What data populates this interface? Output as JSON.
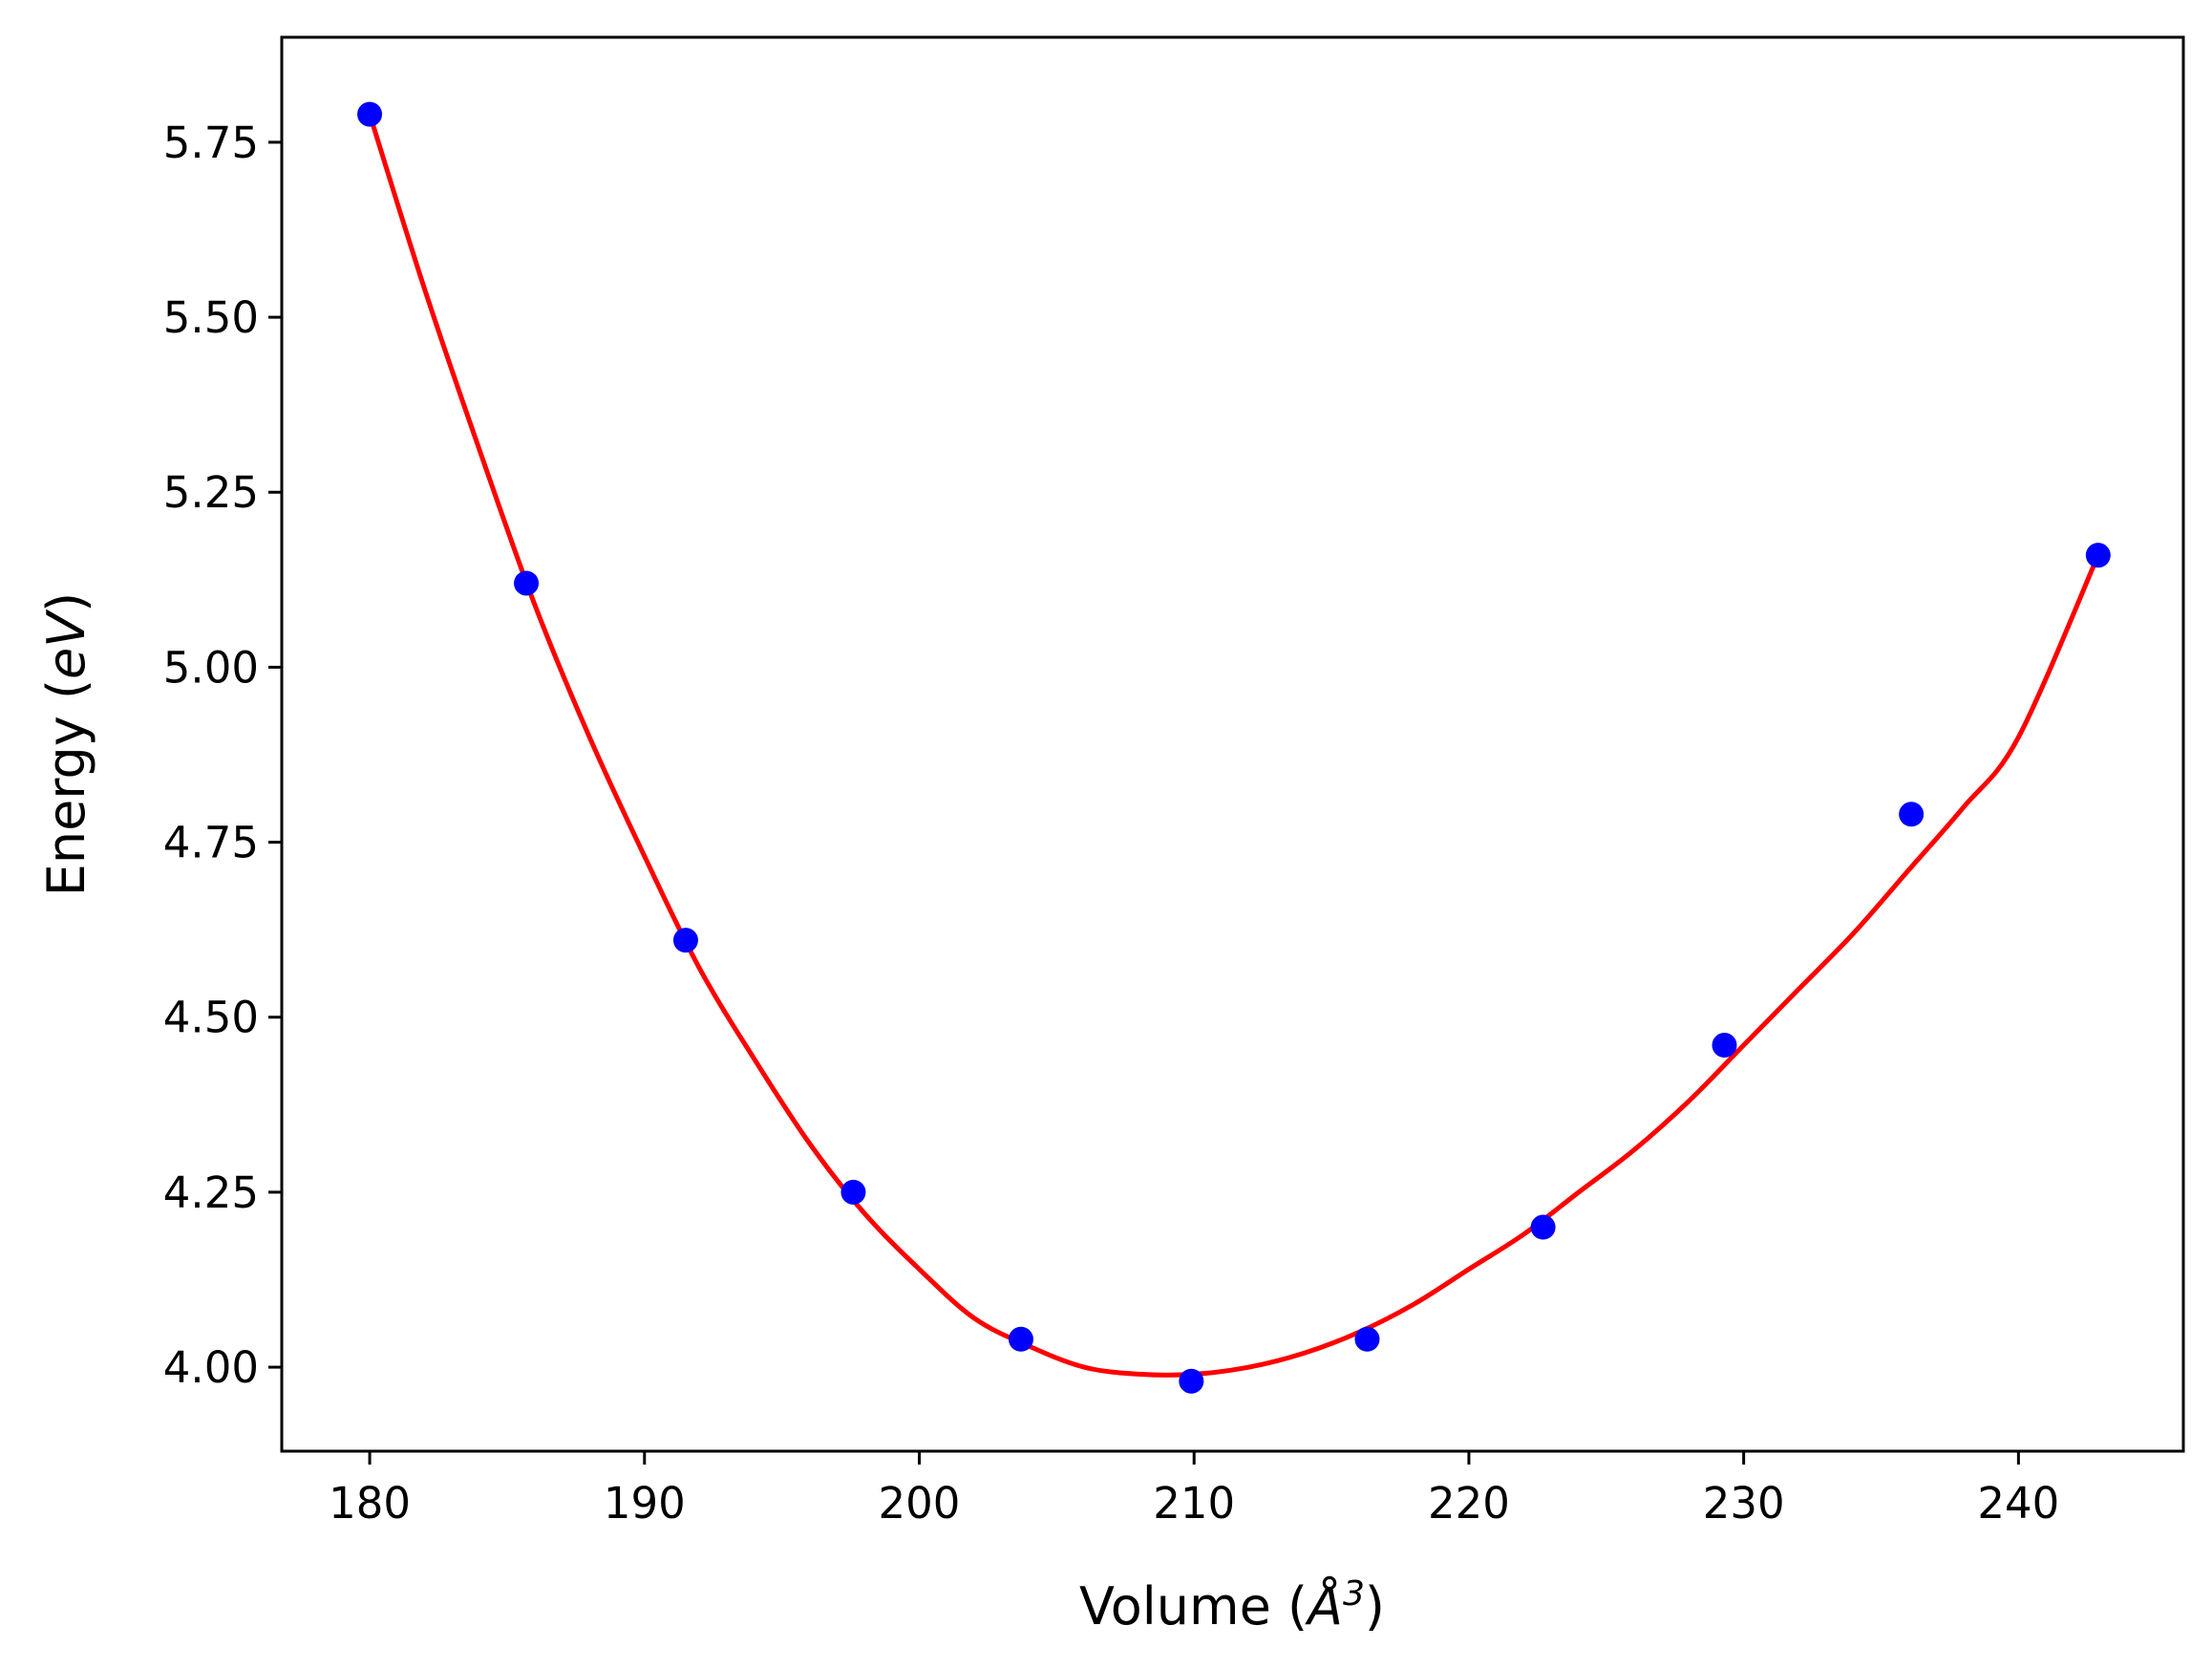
{
  "chart_data": {
    "type": "scatter",
    "title": "",
    "xlabel": "Volume (Å³)",
    "xlabel_parts": {
      "prefix": "Volume (",
      "symbol": "Å",
      "sup": "3",
      "suffix": ")"
    },
    "ylabel": "Energy (eV)",
    "ylabel_parts": {
      "prefix": "Energy (",
      "italic": "eV",
      "suffix": ")"
    },
    "xlim": [
      176.8,
      246.0
    ],
    "ylim": [
      3.88,
      5.9
    ],
    "xticks": [
      180,
      190,
      200,
      210,
      220,
      230,
      240
    ],
    "xtick_labels": [
      "180",
      "190",
      "200",
      "210",
      "220",
      "230",
      "240"
    ],
    "yticks": [
      4.0,
      4.25,
      4.5,
      4.75,
      5.0,
      5.25,
      5.5,
      5.75
    ],
    "ytick_labels": [
      "4.00",
      "4.25",
      "4.50",
      "4.75",
      "5.00",
      "5.25",
      "5.50",
      "5.75"
    ],
    "grid": false,
    "series": [
      {
        "kind": "points",
        "color": "#0000ff",
        "marker": "circle",
        "x": [
          180.0,
          185.7,
          191.5,
          197.6,
          203.7,
          209.9,
          216.3,
          222.7,
          229.3,
          236.1,
          242.9
        ],
        "y": [
          5.79,
          5.12,
          4.61,
          4.25,
          4.04,
          3.98,
          4.04,
          4.2,
          4.46,
          4.79,
          5.16
        ]
      },
      {
        "kind": "fit-curve",
        "color": "#ff0000",
        "x": [
          180.0,
          182.0,
          184.0,
          186.0,
          188.0,
          190.0,
          192.0,
          194.0,
          196.0,
          198.0,
          200.0,
          202.0,
          204.0,
          206.0,
          208.0,
          210.0,
          212.0,
          214.0,
          216.0,
          218.0,
          220.0,
          222.0,
          224.0,
          226.0,
          228.0,
          230.0,
          232.0,
          234.0,
          236.0,
          238.0,
          240.0,
          242.9
        ],
        "y": [
          5.79,
          5.54,
          5.31,
          5.09,
          4.9,
          4.73,
          4.57,
          4.44,
          4.32,
          4.22,
          4.14,
          4.07,
          4.03,
          4.0,
          3.99,
          3.99,
          4.0,
          4.02,
          4.05,
          4.09,
          4.14,
          4.19,
          4.25,
          4.31,
          4.38,
          4.46,
          4.54,
          4.62,
          4.71,
          4.8,
          4.9,
          5.16
        ]
      }
    ]
  }
}
